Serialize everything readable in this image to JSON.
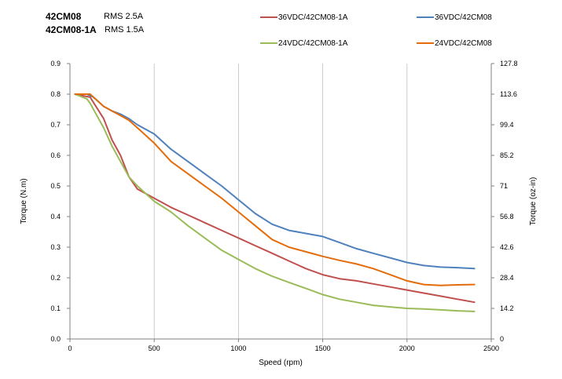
{
  "header": {
    "rows": [
      {
        "model": "42CM08",
        "spec": "RMS 2.5A"
      },
      {
        "model": "42CM08-1A",
        "spec": "RMS 1.5A"
      }
    ]
  },
  "chart_data": {
    "type": "line",
    "xlabel": "Speed (rpm)",
    "ylabel": "Torque (N.m)",
    "y2label": "Torque (oz-in)",
    "xlim": [
      0,
      2500
    ],
    "ylim": [
      0,
      0.9
    ],
    "x_ticks": [
      "0",
      "500",
      "1000",
      "1500",
      "2000",
      "2500"
    ],
    "y_ticks": [
      "0.0",
      "0.1",
      "0.2",
      "0.3",
      "0.4",
      "0.5",
      "0.6",
      "0.7",
      "0.8",
      "0.9"
    ],
    "y2_ticks": [
      "0",
      "14.2",
      "28.4",
      "42.6",
      "56.8",
      "71",
      "85.2",
      "99.4",
      "113.6",
      "127.8"
    ],
    "grid": {
      "vertical": true,
      "horizontal": false
    },
    "legend_position": "top",
    "series": [
      {
        "name": "36VDC/42CM08-1A",
        "color": "#c0504d",
        "x": [
          30,
          120,
          200,
          250,
          300,
          350,
          400,
          500,
          600,
          700,
          800,
          900,
          1000,
          1100,
          1200,
          1300,
          1400,
          1500,
          1600,
          1700,
          1800,
          1900,
          2000,
          2100,
          2200,
          2300,
          2400
        ],
        "y": [
          0.8,
          0.79,
          0.72,
          0.65,
          0.6,
          0.53,
          0.49,
          0.46,
          0.43,
          0.405,
          0.38,
          0.355,
          0.33,
          0.305,
          0.28,
          0.255,
          0.23,
          0.21,
          0.197,
          0.19,
          0.18,
          0.17,
          0.16,
          0.15,
          0.14,
          0.13,
          0.12
        ]
      },
      {
        "name": "36VDC/42CM08",
        "color": "#4f81bd",
        "x": [
          30,
          100,
          140,
          200,
          250,
          300,
          350,
          400,
          500,
          600,
          700,
          800,
          900,
          1000,
          1100,
          1200,
          1300,
          1400,
          1500,
          1600,
          1700,
          1800,
          1900,
          2000,
          2100,
          2200,
          2300,
          2400
        ],
        "y": [
          0.8,
          0.8,
          0.79,
          0.76,
          0.745,
          0.735,
          0.72,
          0.7,
          0.67,
          0.62,
          0.58,
          0.54,
          0.5,
          0.455,
          0.41,
          0.375,
          0.355,
          0.345,
          0.335,
          0.315,
          0.295,
          0.28,
          0.265,
          0.25,
          0.24,
          0.235,
          0.233,
          0.23
        ]
      },
      {
        "name": "24VDC/42CM08-1A",
        "color": "#9bbb59",
        "x": [
          30,
          100,
          120,
          170,
          200,
          250,
          300,
          350,
          400,
          500,
          600,
          700,
          800,
          900,
          1000,
          1100,
          1200,
          1300,
          1400,
          1500,
          1600,
          1700,
          1800,
          1900,
          2000,
          2100,
          2200,
          2300,
          2400
        ],
        "y": [
          0.8,
          0.785,
          0.77,
          0.72,
          0.69,
          0.63,
          0.58,
          0.53,
          0.5,
          0.45,
          0.415,
          0.37,
          0.33,
          0.29,
          0.26,
          0.23,
          0.205,
          0.185,
          0.165,
          0.145,
          0.13,
          0.12,
          0.11,
          0.105,
          0.1,
          0.098,
          0.095,
          0.092,
          0.09
        ]
      },
      {
        "name": "24VDC/42CM08",
        "color": "#e46c0a",
        "x": [
          30,
          120,
          160,
          200,
          250,
          300,
          350,
          400,
          500,
          550,
          600,
          700,
          800,
          900,
          1000,
          1100,
          1200,
          1300,
          1400,
          1500,
          1600,
          1700,
          1800,
          1900,
          2000,
          2100,
          2200,
          2300,
          2400
        ],
        "y": [
          0.8,
          0.8,
          0.78,
          0.76,
          0.745,
          0.73,
          0.715,
          0.69,
          0.64,
          0.61,
          0.58,
          0.54,
          0.5,
          0.46,
          0.415,
          0.37,
          0.325,
          0.3,
          0.285,
          0.27,
          0.257,
          0.245,
          0.23,
          0.21,
          0.19,
          0.178,
          0.175,
          0.177,
          0.178
        ]
      }
    ]
  }
}
